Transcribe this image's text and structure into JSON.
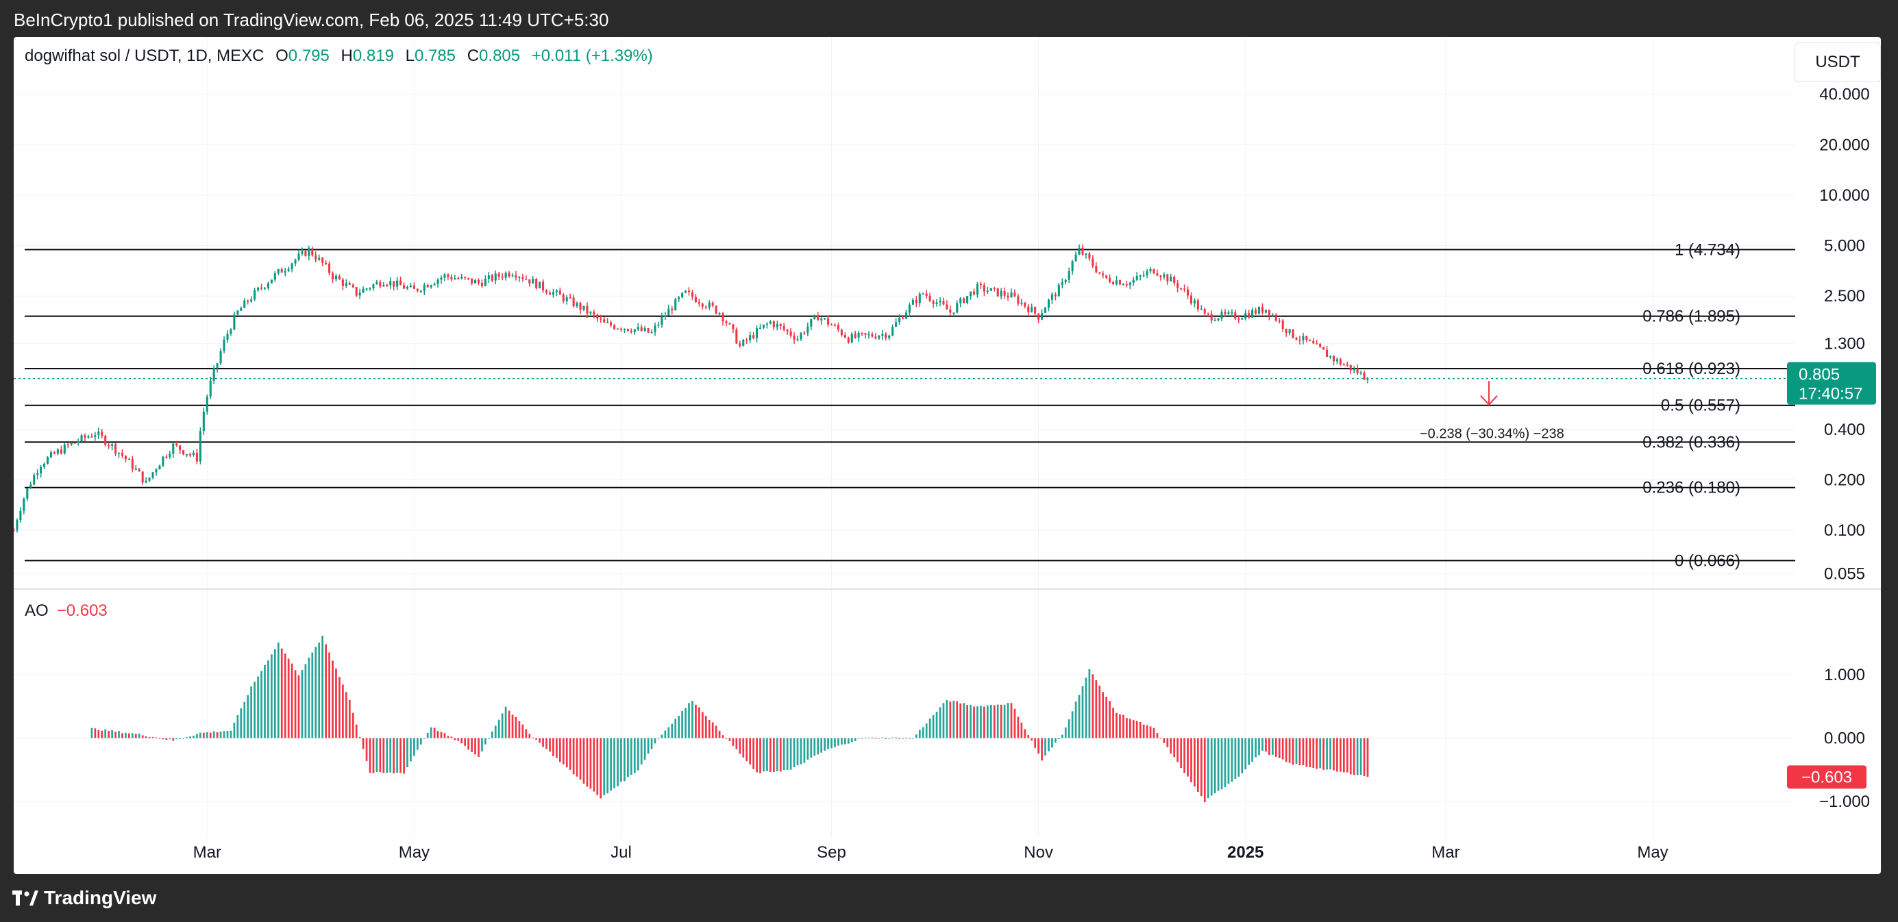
{
  "header": {
    "published": "BeInCrypto1 published on TradingView.com, Feb 06, 2025 11:49 UTC+5:30"
  },
  "legend": {
    "symbol": "dogwifhat sol / USDT, 1D, MEXC",
    "o_label": "O",
    "o": "0.795",
    "h_label": "H",
    "h": "0.819",
    "l_label": "L",
    "l": "0.785",
    "c_label": "C",
    "c": "0.805",
    "change": "+0.011 (+1.39%)"
  },
  "currency_button": "USDT",
  "colors": {
    "up": "#089981",
    "down": "#f23645",
    "ao_up": "#26a69a",
    "ao_down": "#f23645",
    "grid": "#f0f3fa",
    "fib": "#000000"
  },
  "chart_data": [
    {
      "type": "candlestick",
      "title": "dogwifhat sol / USDT, 1D, MEXC",
      "log_scale": true,
      "ylim": [
        0.045,
        50
      ],
      "y_ticks": [
        "40.000",
        "20.000",
        "10.000",
        "5.000",
        "2.500",
        "1.300",
        "0.400",
        "0.200",
        "0.100",
        "0.055"
      ],
      "x_ticks": [
        {
          "label": "Mar",
          "date": "2024-03-01"
        },
        {
          "label": "May",
          "date": "2024-05-01"
        },
        {
          "label": "Jul",
          "date": "2024-07-01"
        },
        {
          "label": "Sep",
          "date": "2024-09-01"
        },
        {
          "label": "Nov",
          "date": "2024-11-01"
        },
        {
          "label": "2025",
          "date": "2025-01-01"
        },
        {
          "label": "Mar",
          "date": "2025-03-01"
        },
        {
          "label": "May",
          "date": "2025-05-01"
        }
      ],
      "xlim": [
        "2024-01-04",
        "2025-06-12"
      ],
      "price_path": [
        [
          "2024-01-04",
          0.1
        ],
        [
          "2024-01-12",
          0.25
        ],
        [
          "2024-01-20",
          0.32
        ],
        [
          "2024-01-28",
          0.38
        ],
        [
          "2024-02-05",
          0.28
        ],
        [
          "2024-02-12",
          0.19
        ],
        [
          "2024-02-20",
          0.32
        ],
        [
          "2024-02-27",
          0.27
        ],
        [
          "2024-03-04",
          1.0
        ],
        [
          "2024-03-10",
          2.0
        ],
        [
          "2024-03-16",
          2.7
        ],
        [
          "2024-03-24",
          3.7
        ],
        [
          "2024-03-31",
          4.7
        ],
        [
          "2024-04-07",
          3.3
        ],
        [
          "2024-04-14",
          2.6
        ],
        [
          "2024-04-22",
          3.1
        ],
        [
          "2024-05-01",
          2.7
        ],
        [
          "2024-05-10",
          3.3
        ],
        [
          "2024-05-20",
          3.0
        ],
        [
          "2024-05-30",
          3.5
        ],
        [
          "2024-06-08",
          2.8
        ],
        [
          "2024-06-18",
          2.2
        ],
        [
          "2024-06-26",
          1.7
        ],
        [
          "2024-07-04",
          1.6
        ],
        [
          "2024-07-10",
          1.5
        ],
        [
          "2024-07-20",
          2.6
        ],
        [
          "2024-07-30",
          2.0
        ],
        [
          "2024-08-05",
          1.25
        ],
        [
          "2024-08-14",
          1.75
        ],
        [
          "2024-08-22",
          1.4
        ],
        [
          "2024-08-28",
          1.9
        ],
        [
          "2024-09-06",
          1.4
        ],
        [
          "2024-09-18",
          1.5
        ],
        [
          "2024-09-28",
          2.6
        ],
        [
          "2024-10-06",
          2.0
        ],
        [
          "2024-10-14",
          2.8
        ],
        [
          "2024-10-24",
          2.5
        ],
        [
          "2024-11-01",
          1.9
        ],
        [
          "2024-11-08",
          2.9
        ],
        [
          "2024-11-13",
          4.7
        ],
        [
          "2024-11-20",
          3.2
        ],
        [
          "2024-11-28",
          3.0
        ],
        [
          "2024-12-05",
          3.6
        ],
        [
          "2024-12-12",
          2.9
        ],
        [
          "2024-12-20",
          1.9
        ],
        [
          "2024-12-30",
          1.9
        ],
        [
          "2025-01-07",
          2.1
        ],
        [
          "2025-01-14",
          1.5
        ],
        [
          "2025-01-20",
          1.3
        ],
        [
          "2025-01-27",
          1.05
        ],
        [
          "2025-02-06",
          0.805
        ]
      ],
      "last_price": "0.805",
      "countdown": "17:40:57",
      "fib_levels": [
        {
          "label": "1 (4.734)",
          "value": 4.734
        },
        {
          "label": "0.786 (1.895)",
          "value": 1.895
        },
        {
          "label": "0.618 (0.923)",
          "value": 0.923
        },
        {
          "label": "0.5 (0.557)",
          "value": 0.557
        },
        {
          "label": "0.382 (0.336)",
          "value": 0.336
        },
        {
          "label": "0.236 (0.180)",
          "value": 0.18
        },
        {
          "label": "0 (0.066)",
          "value": 0.066
        }
      ],
      "annotation": "−0.238 (−30.34%) −238"
    },
    {
      "type": "bar",
      "title": "AO",
      "value_label": "−0.603",
      "value": -0.603,
      "ylim": [
        -1.15,
        1.55
      ],
      "y_ticks": [
        "1.000",
        "0.000",
        "−1.000"
      ],
      "ao_path": [
        [
          "2024-01-27",
          0.15
        ],
        [
          "2024-02-10",
          0.06
        ],
        [
          "2024-02-20",
          -0.04
        ],
        [
          "2024-02-28",
          0.08
        ],
        [
          "2024-03-08",
          0.12
        ],
        [
          "2024-03-14",
          0.8
        ],
        [
          "2024-03-22",
          1.5
        ],
        [
          "2024-03-28",
          1.0
        ],
        [
          "2024-04-04",
          1.6
        ],
        [
          "2024-04-12",
          0.6
        ],
        [
          "2024-04-18",
          -0.55
        ],
        [
          "2024-04-28",
          -0.55
        ],
        [
          "2024-05-06",
          0.18
        ],
        [
          "2024-05-14",
          -0.05
        ],
        [
          "2024-05-20",
          -0.3
        ],
        [
          "2024-05-28",
          0.5
        ],
        [
          "2024-06-05",
          0.02
        ],
        [
          "2024-06-25",
          -0.95
        ],
        [
          "2024-07-06",
          -0.5
        ],
        [
          "2024-07-12",
          0.0
        ],
        [
          "2024-07-22",
          0.6
        ],
        [
          "2024-08-01",
          0.0
        ],
        [
          "2024-08-10",
          -0.55
        ],
        [
          "2024-08-20",
          -0.5
        ],
        [
          "2024-08-30",
          -0.2
        ],
        [
          "2024-09-10",
          0.0
        ],
        [
          "2024-09-25",
          0.0
        ],
        [
          "2024-10-05",
          0.6
        ],
        [
          "2024-10-14",
          0.5
        ],
        [
          "2024-10-24",
          0.55
        ],
        [
          "2024-11-02",
          -0.35
        ],
        [
          "2024-11-08",
          0.05
        ],
        [
          "2024-11-16",
          1.08
        ],
        [
          "2024-11-24",
          0.4
        ],
        [
          "2024-12-05",
          0.15
        ],
        [
          "2024-12-20",
          -1.0
        ],
        [
          "2024-12-30",
          -0.6
        ],
        [
          "2025-01-06",
          -0.2
        ],
        [
          "2025-01-14",
          -0.4
        ],
        [
          "2025-01-25",
          -0.5
        ],
        [
          "2025-02-06",
          -0.603
        ]
      ],
      "bar_colors": "teal when the value rises from the previous bar, red when it falls"
    }
  ]
}
